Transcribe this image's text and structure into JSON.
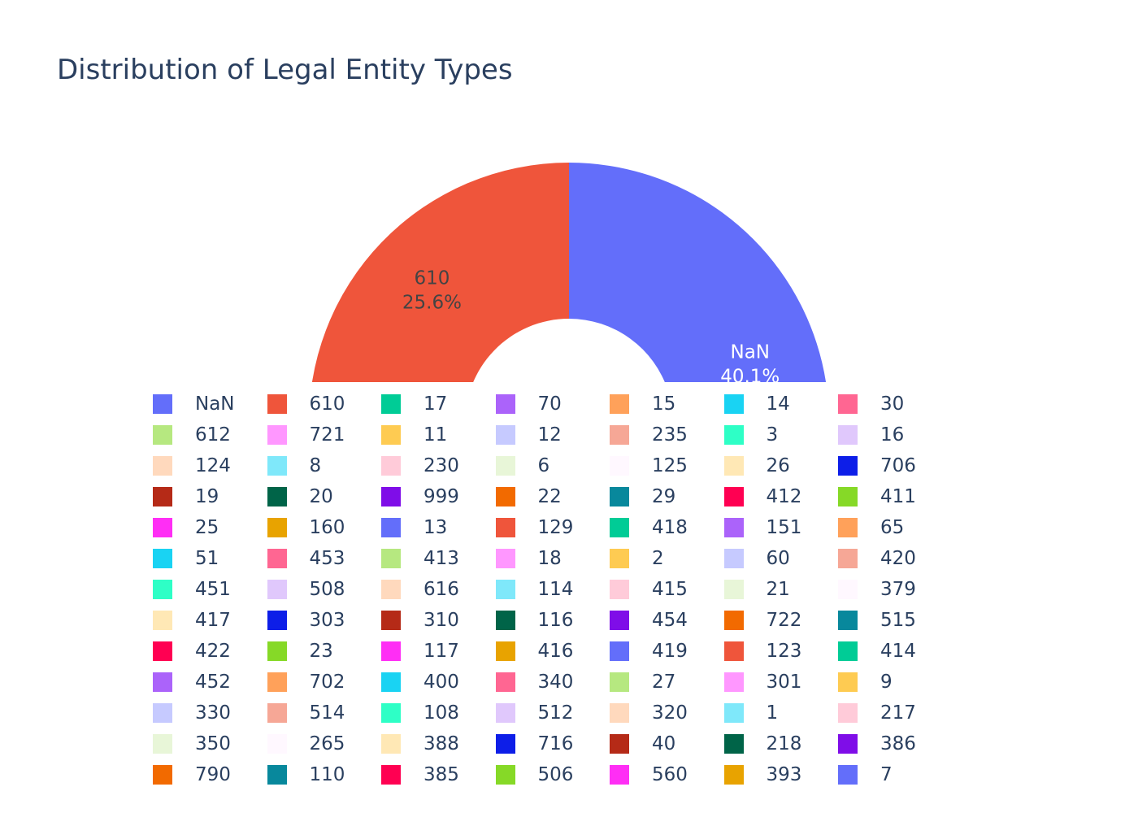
{
  "chart_data": {
    "type": "pie",
    "title": "Distribution of Legal Entity Types",
    "hole": true,
    "legend_position": "bottom",
    "slices": [
      {
        "label": "NaN",
        "value": 40.1,
        "color": "#636efa",
        "text_line1": "NaN",
        "text_line2": "40.1%",
        "text_color": "#ffffff"
      },
      {
        "label": "610",
        "value": 25.6,
        "color": "#ef553b",
        "text_line1": "610",
        "text_line2": "25.6%",
        "text_color": "#444444"
      }
    ],
    "legend": [
      {
        "label": "NaN",
        "color": "#636efa"
      },
      {
        "label": "610",
        "color": "#ef553b"
      },
      {
        "label": "17",
        "color": "#00cc96"
      },
      {
        "label": "70",
        "color": "#ab63fa"
      },
      {
        "label": "15",
        "color": "#ffa15a"
      },
      {
        "label": "14",
        "color": "#19d3f3"
      },
      {
        "label": "30",
        "color": "#ff6692"
      },
      {
        "label": "612",
        "color": "#b6e880"
      },
      {
        "label": "721",
        "color": "#ff97ff"
      },
      {
        "label": "11",
        "color": "#fecb52"
      },
      {
        "label": "12",
        "color": "#c6caff"
      },
      {
        "label": "235",
        "color": "#f6a796"
      },
      {
        "label": "3",
        "color": "#2effc6"
      },
      {
        "label": "16",
        "color": "#e0c8fc"
      },
      {
        "label": "124",
        "color": "#ffd9bd"
      },
      {
        "label": "8",
        "color": "#7fe8fa"
      },
      {
        "label": "230",
        "color": "#ffcbd9"
      },
      {
        "label": "6",
        "color": "#e8f6d8"
      },
      {
        "label": "125",
        "color": "#fff8ff"
      },
      {
        "label": "26",
        "color": "#ffe8b5"
      },
      {
        "label": "706",
        "color": "#0d1ee8"
      },
      {
        "label": "19",
        "color": "#b52a17"
      },
      {
        "label": "20",
        "color": "#006448"
      },
      {
        "label": "999",
        "color": "#7f0de8"
      },
      {
        "label": "22",
        "color": "#f26a00"
      },
      {
        "label": "29",
        "color": "#08889c"
      },
      {
        "label": "412",
        "color": "#ff0052"
      },
      {
        "label": "411",
        "color": "#86d927"
      },
      {
        "label": "25",
        "color": "#ff2ef5"
      },
      {
        "label": "160",
        "color": "#e8a300"
      },
      {
        "label": "13",
        "color": "#636efa"
      },
      {
        "label": "129",
        "color": "#ef553b"
      },
      {
        "label": "418",
        "color": "#00cc96"
      },
      {
        "label": "151",
        "color": "#ab63fa"
      },
      {
        "label": "65",
        "color": "#ffa15a"
      },
      {
        "label": "51",
        "color": "#19d3f3"
      },
      {
        "label": "453",
        "color": "#ff6692"
      },
      {
        "label": "413",
        "color": "#b6e880"
      },
      {
        "label": "18",
        "color": "#ff97ff"
      },
      {
        "label": "2",
        "color": "#fecb52"
      },
      {
        "label": "60",
        "color": "#c6caff"
      },
      {
        "label": "420",
        "color": "#f6a796"
      },
      {
        "label": "451",
        "color": "#2effc6"
      },
      {
        "label": "508",
        "color": "#e0c8fc"
      },
      {
        "label": "616",
        "color": "#ffd9bd"
      },
      {
        "label": "114",
        "color": "#7fe8fa"
      },
      {
        "label": "415",
        "color": "#ffcbd9"
      },
      {
        "label": "21",
        "color": "#e8f6d8"
      },
      {
        "label": "379",
        "color": "#fff8ff"
      },
      {
        "label": "417",
        "color": "#ffe8b5"
      },
      {
        "label": "303",
        "color": "#0d1ee8"
      },
      {
        "label": "310",
        "color": "#b52a17"
      },
      {
        "label": "116",
        "color": "#006448"
      },
      {
        "label": "454",
        "color": "#7f0de8"
      },
      {
        "label": "722",
        "color": "#f26a00"
      },
      {
        "label": "515",
        "color": "#08889c"
      },
      {
        "label": "422",
        "color": "#ff0052"
      },
      {
        "label": "23",
        "color": "#86d927"
      },
      {
        "label": "117",
        "color": "#ff2ef5"
      },
      {
        "label": "416",
        "color": "#e8a300"
      },
      {
        "label": "419",
        "color": "#636efa"
      },
      {
        "label": "123",
        "color": "#ef553b"
      },
      {
        "label": "414",
        "color": "#00cc96"
      },
      {
        "label": "452",
        "color": "#ab63fa"
      },
      {
        "label": "702",
        "color": "#ffa15a"
      },
      {
        "label": "400",
        "color": "#19d3f3"
      },
      {
        "label": "340",
        "color": "#ff6692"
      },
      {
        "label": "27",
        "color": "#b6e880"
      },
      {
        "label": "301",
        "color": "#ff97ff"
      },
      {
        "label": "9",
        "color": "#fecb52"
      },
      {
        "label": "330",
        "color": "#c6caff"
      },
      {
        "label": "514",
        "color": "#f6a796"
      },
      {
        "label": "108",
        "color": "#2effc6"
      },
      {
        "label": "512",
        "color": "#e0c8fc"
      },
      {
        "label": "320",
        "color": "#ffd9bd"
      },
      {
        "label": "1",
        "color": "#7fe8fa"
      },
      {
        "label": "217",
        "color": "#ffcbd9"
      },
      {
        "label": "350",
        "color": "#e8f6d8"
      },
      {
        "label": "265",
        "color": "#fff8ff"
      },
      {
        "label": "388",
        "color": "#ffe8b5"
      },
      {
        "label": "716",
        "color": "#0d1ee8"
      },
      {
        "label": "40",
        "color": "#b52a17"
      },
      {
        "label": "218",
        "color": "#006448"
      },
      {
        "label": "386",
        "color": "#7f0de8"
      },
      {
        "label": "790",
        "color": "#f26a00"
      },
      {
        "label": "110",
        "color": "#08889c"
      },
      {
        "label": "385",
        "color": "#ff0052"
      },
      {
        "label": "506",
        "color": "#86d927"
      },
      {
        "label": "560",
        "color": "#ff2ef5"
      },
      {
        "label": "393",
        "color": "#e8a300"
      },
      {
        "label": "7",
        "color": "#636efa"
      }
    ]
  }
}
